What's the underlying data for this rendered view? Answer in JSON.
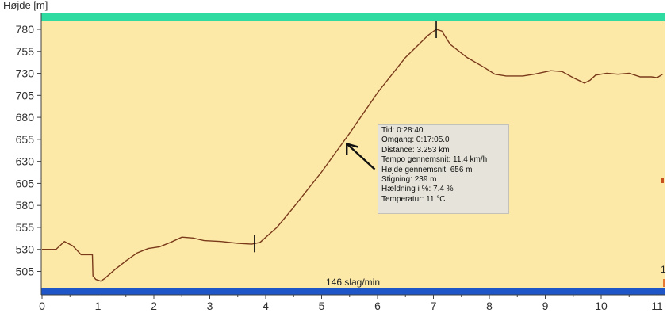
{
  "chart_data": {
    "type": "line",
    "ylabel": "Højde [m]",
    "xlabel": "",
    "xlim": [
      0,
      11.1
    ],
    "ylim": [
      490,
      795
    ],
    "y_ticks": [
      505,
      530,
      555,
      580,
      605,
      630,
      655,
      680,
      705,
      730,
      755,
      780
    ],
    "x_ticks": [
      0,
      1,
      2,
      3,
      4,
      5,
      6,
      7,
      8,
      9,
      10,
      11
    ],
    "grid": false,
    "series": [
      {
        "x": [
          0,
          0.25,
          0.4,
          0.55,
          0.7,
          0.9,
          0.91,
          0.96,
          1.05,
          1.12,
          1.3,
          1.5,
          1.7,
          1.82,
          1.9,
          2.1,
          2.3,
          2.5,
          2.7,
          2.9,
          3.2,
          3.5,
          3.75,
          3.9,
          4.2,
          4.5,
          5.0,
          5.5,
          6.0,
          6.5,
          6.9,
          7.05,
          7.15,
          7.3,
          7.6,
          7.9,
          8.1,
          8.3,
          8.6,
          8.8,
          9.1,
          9.3,
          9.5,
          9.7,
          9.8,
          9.9,
          10.1,
          10.3,
          10.5,
          10.7,
          10.9,
          11.0,
          11.1
        ],
        "y": [
          530,
          530,
          539,
          534,
          524,
          524,
          500,
          496,
          494,
          497,
          507,
          517,
          526,
          529,
          531,
          533,
          538,
          544,
          543,
          540,
          539,
          537,
          536,
          538,
          555,
          578,
          618,
          662,
          708,
          748,
          773,
          780,
          778,
          763,
          748,
          737,
          729,
          727,
          727,
          729,
          733,
          732,
          725,
          719,
          722,
          728,
          730,
          729,
          730,
          726,
          726,
          725,
          729
        ]
      }
    ],
    "markers_x": [
      3.8,
      7.05
    ],
    "arrow": {
      "from": [
        5.95,
        621
      ],
      "to": [
        5.45,
        650
      ]
    },
    "top_band_color": "#2fdba0",
    "bottom_band_color": "#1e56c8",
    "plot_bg_color": "#fce9a8",
    "line_color": "#7a3a1a",
    "heart_rate_label": "146 slag/min",
    "right_marker_label": "1"
  },
  "info": {
    "tid": "Tid: 0:28:40",
    "omgang": "Omgang: 0:17:05.0",
    "distance": "Distance:  3.253 km",
    "tempo": "Tempo gennemsnit: 11,4 km/h",
    "hojde": "Højde gennemsnit:  656 m",
    "stigning": "Stigning:  239 m",
    "haeldning": "Hældning i %: 7.4 %",
    "temperatur": "Temperatur: 11 °C"
  }
}
